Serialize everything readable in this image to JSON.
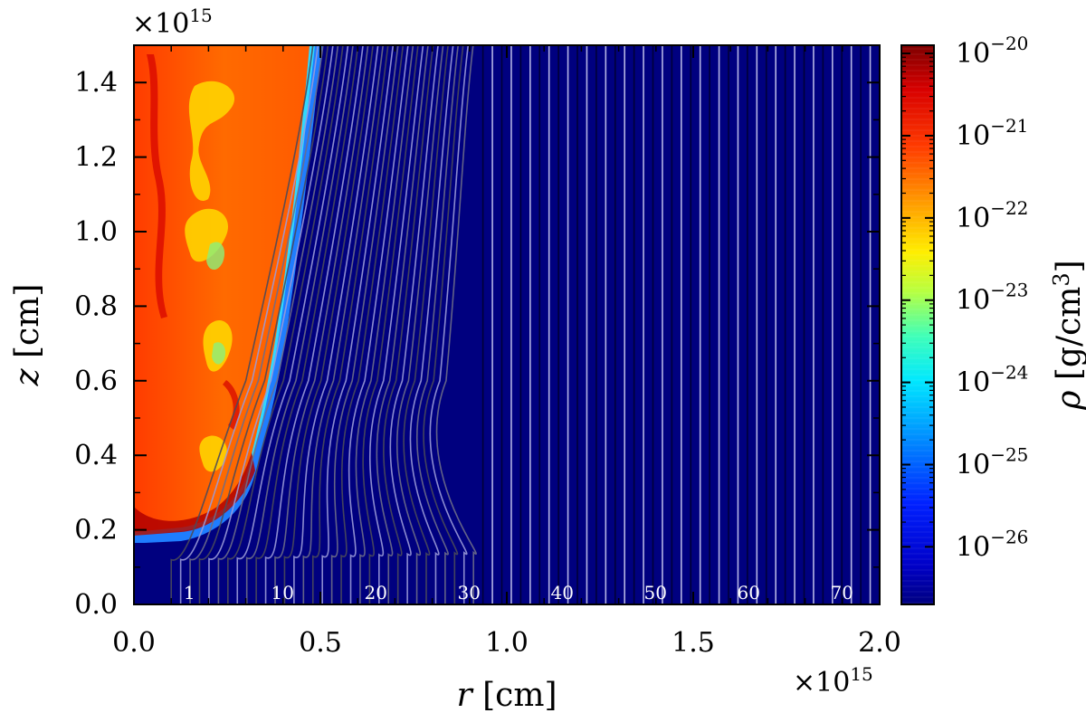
{
  "chart_data": {
    "type": "heatmap",
    "description": "Density colormap in r-z plane with streamlines/tracer lines",
    "xlabel": "r [cm]",
    "ylabel": "z [cm]",
    "xlabel_var": "r",
    "xlabel_unit": " [cm]",
    "ylabel_var": "z",
    "ylabel_unit": " [cm]",
    "x_multiplier": "×10",
    "x_multiplier_exp": "15",
    "y_multiplier": "×10",
    "y_multiplier_exp": "15",
    "xlim": [
      0.0,
      2.0
    ],
    "ylim": [
      0.0,
      1.5
    ],
    "x_ticks": [
      "0.0",
      "0.5",
      "1.0",
      "1.5",
      "2.0"
    ],
    "y_ticks": [
      "0.0",
      "0.2",
      "0.4",
      "0.6",
      "0.8",
      "1.0",
      "1.2",
      "1.4"
    ],
    "colorbar": {
      "label_var": "ρ",
      "label_unit": " [g/cm",
      "label_unit_exp": "3",
      "label_close": "]",
      "scale": "log",
      "range": [
        -26.7,
        -19.9
      ],
      "ticks": [
        {
          "base": "10",
          "exp": "−20",
          "value": -20
        },
        {
          "base": "10",
          "exp": "−21",
          "value": -21
        },
        {
          "base": "10",
          "exp": "−22",
          "value": -22
        },
        {
          "base": "10",
          "exp": "−23",
          "value": -23
        },
        {
          "base": "10",
          "exp": "−24",
          "value": -24
        },
        {
          "base": "10",
          "exp": "−25",
          "value": -25
        },
        {
          "base": "10",
          "exp": "−26",
          "value": -26
        }
      ],
      "colormap": [
        "#00007f",
        "#0000ff",
        "#007fff",
        "#00ffff",
        "#7fff7f",
        "#ffff00",
        "#ff7f00",
        "#ff0000",
        "#7f0000"
      ]
    },
    "line_labels": [
      {
        "text": "1",
        "r": 0.1
      },
      {
        "text": "10",
        "r": 0.35
      },
      {
        "text": "20",
        "r": 0.6
      },
      {
        "text": "30",
        "r": 0.85
      },
      {
        "text": "40",
        "r": 1.1
      },
      {
        "text": "50",
        "r": 1.35
      },
      {
        "text": "60",
        "r": 1.6
      },
      {
        "text": "70",
        "r": 1.85
      }
    ],
    "n_lines": 76
  }
}
